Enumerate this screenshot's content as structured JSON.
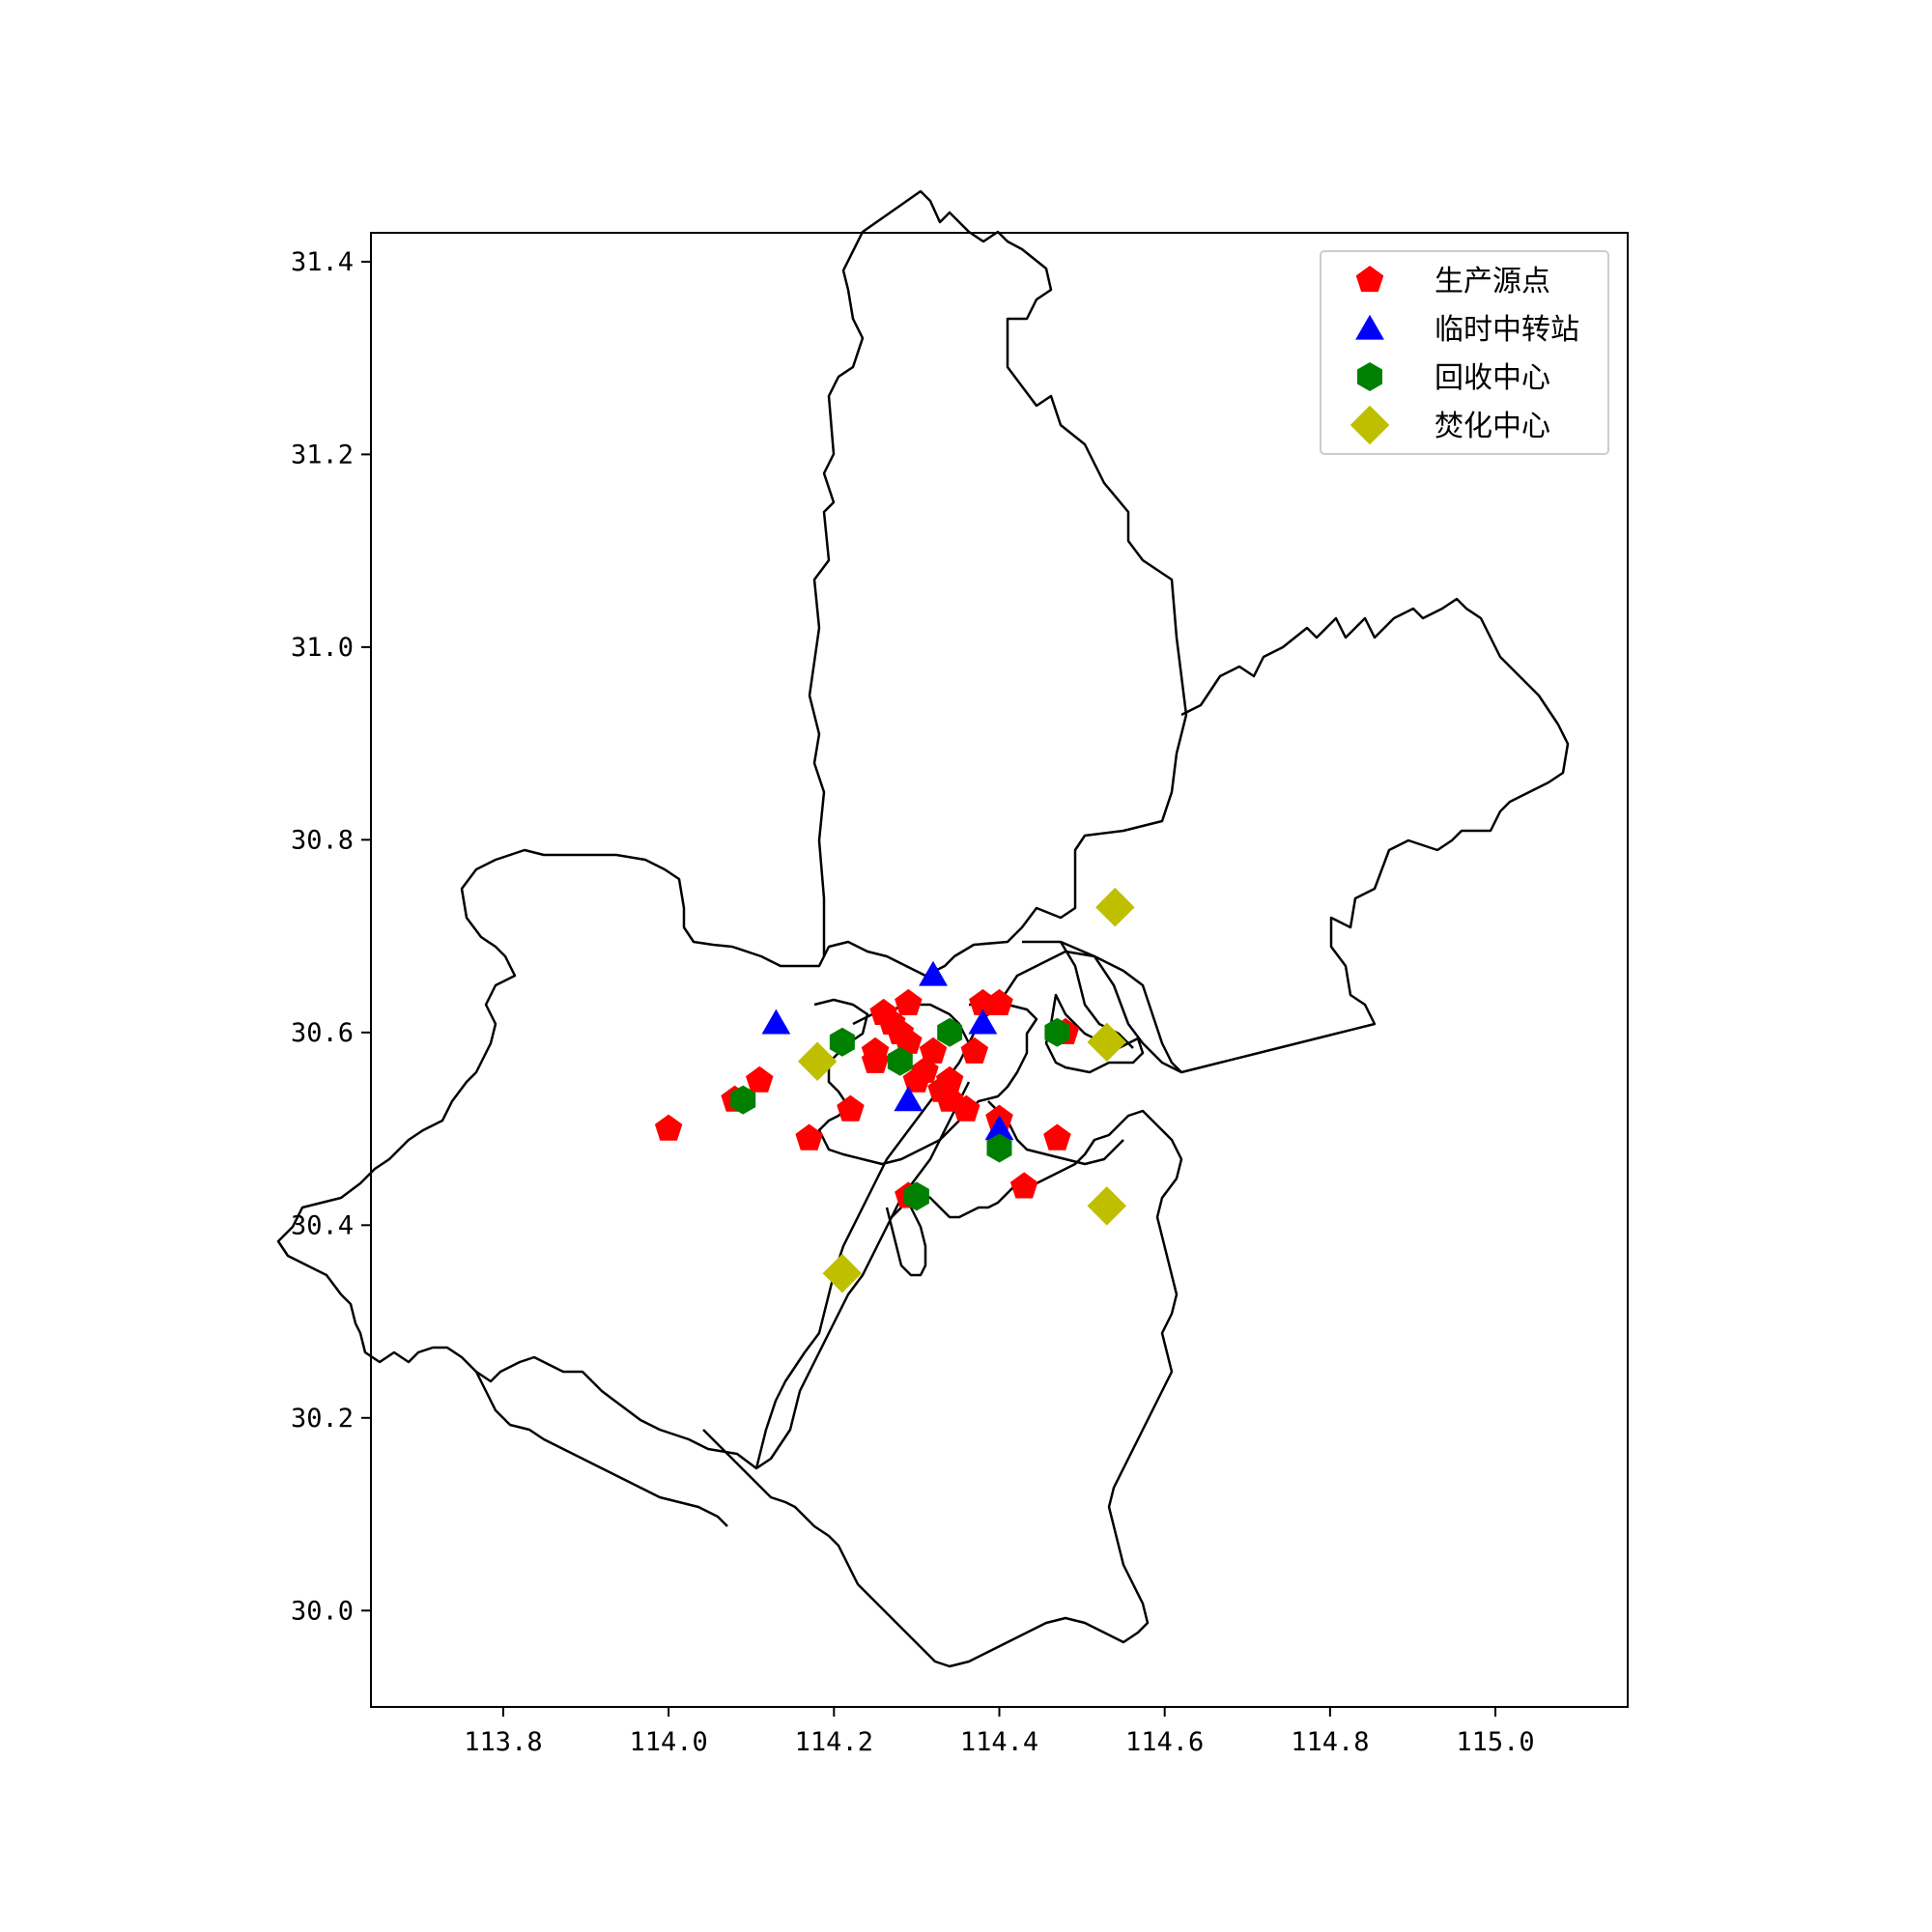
{
  "chart_data": {
    "type": "scatter",
    "title": "",
    "xlabel": "",
    "ylabel": "",
    "xlim": [
      113.64,
      115.16
    ],
    "ylim": [
      29.9,
      31.43
    ],
    "xticks": [
      113.8,
      114.0,
      114.2,
      114.4,
      114.6,
      114.8,
      115.0
    ],
    "xtick_labels": [
      "113.8",
      "114.0",
      "114.2",
      "114.4",
      "114.6",
      "114.8",
      "115.0"
    ],
    "yticks": [
      30.0,
      30.2,
      30.4,
      30.6,
      30.8,
      31.0,
      31.2,
      31.4
    ],
    "ytick_labels": [
      "30.0",
      "30.2",
      "30.4",
      "30.6",
      "30.8",
      "31.0",
      "31.2",
      "31.4"
    ],
    "grid": false,
    "legend_position": "top-right",
    "series": [
      {
        "name": "生产源点",
        "marker": "pentagon",
        "color": "#ff0000",
        "points": [
          [
            114.0,
            30.5
          ],
          [
            114.08,
            30.53
          ],
          [
            114.11,
            30.55
          ],
          [
            114.17,
            30.49
          ],
          [
            114.22,
            30.52
          ],
          [
            114.25,
            30.57
          ],
          [
            114.25,
            30.58
          ],
          [
            114.26,
            30.62
          ],
          [
            114.27,
            30.61
          ],
          [
            114.28,
            30.6
          ],
          [
            114.29,
            30.59
          ],
          [
            114.29,
            30.63
          ],
          [
            114.3,
            30.55
          ],
          [
            114.31,
            30.56
          ],
          [
            114.32,
            30.58
          ],
          [
            114.33,
            30.54
          ],
          [
            114.34,
            30.55
          ],
          [
            114.36,
            30.52
          ],
          [
            114.37,
            30.58
          ],
          [
            114.38,
            30.63
          ],
          [
            114.4,
            30.63
          ],
          [
            114.4,
            30.51
          ],
          [
            114.43,
            30.44
          ],
          [
            114.47,
            30.49
          ],
          [
            114.48,
            30.6
          ],
          [
            114.29,
            30.43
          ],
          [
            114.34,
            30.53
          ]
        ]
      },
      {
        "name": "临时中转站",
        "marker": "triangle",
        "color": "#0000ff",
        "points": [
          [
            114.13,
            30.61
          ],
          [
            114.32,
            30.66
          ],
          [
            114.38,
            30.61
          ],
          [
            114.29,
            30.53
          ],
          [
            114.4,
            30.5
          ]
        ]
      },
      {
        "name": "回收中心",
        "marker": "hexagon",
        "color": "#008000",
        "points": [
          [
            114.09,
            30.53
          ],
          [
            114.21,
            30.59
          ],
          [
            114.28,
            30.57
          ],
          [
            114.34,
            30.6
          ],
          [
            114.47,
            30.6
          ],
          [
            114.4,
            30.48
          ],
          [
            114.3,
            30.43
          ]
        ]
      },
      {
        "name": "焚化中心",
        "marker": "diamond",
        "color": "#bfbf00",
        "points": [
          [
            114.18,
            30.57
          ],
          [
            114.54,
            30.73
          ],
          [
            114.53,
            30.59
          ],
          [
            114.53,
            30.42
          ],
          [
            114.21,
            30.35
          ]
        ]
      }
    ]
  }
}
